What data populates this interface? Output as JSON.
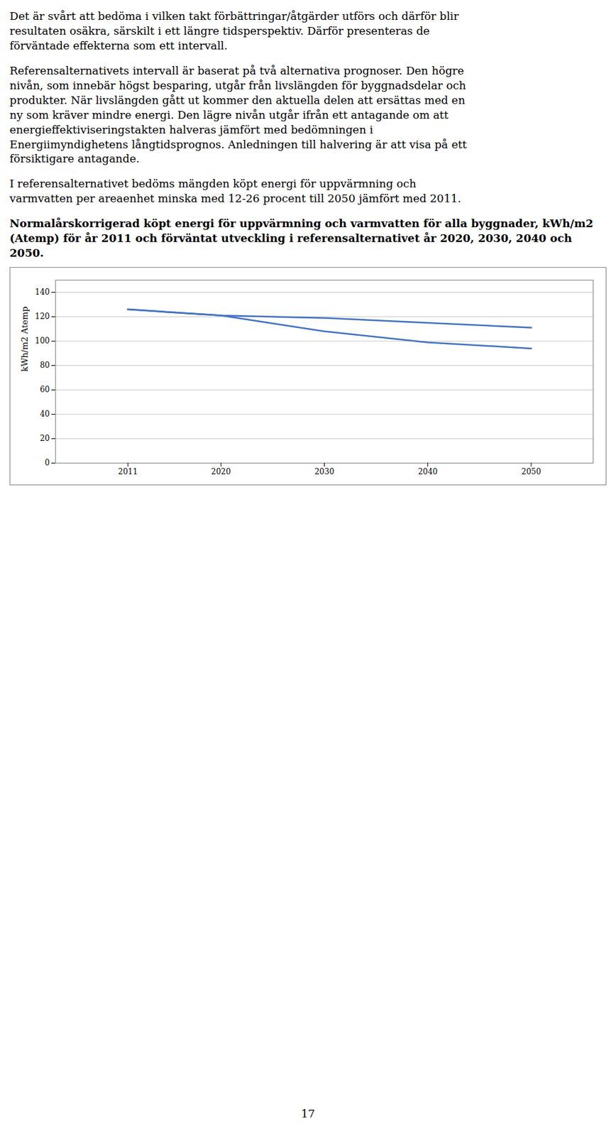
{
  "chart_data": {
    "type": "line",
    "annotations": [
      "Det är svårt att bedöma i vilken takt förbättringar/åtgärder utförs och därför blir\nresultaten osäkra, särskilt i ett längre tidsperspektiv. Därför presenteras de\nförväntade effekterna som ett intervall.",
      "Referensalternativets intervall är baserat på två alternativa prognoser. Den högre\nnivån, som innebär högst besparing, utgår från livslängden för byggnadsdelar och\nprodukter. När livslängden gått ut kommer den aktuella delen att ersättas med en\nny som kräver mindre energi. Den lägre nivån utgår ifrån ett antagande om att\nenergieffektiviseringstakten halveras jämfört med bedömningen i\nEnergiimyndighetens långtidsprognos. Anledningen till halvering är att visa på ett\nförsiktigare antagande.",
      "I referensalternativet bedöms mängden köpt energi för uppvärmning och\nvarmvatten per areaenhet minska med 12-26 procent till 2050 jämfört med 2011."
    ],
    "title": "Normalårskorrigerad köpt energi för uppvärmning och varmvatten för alla byggnader, kWh/m2 (Atemp) för år 2011 och förväntat utveckling i referensalternativet år 2020, 2030, 2040 och 2050.",
    "y_label": "kWh/m2 Atemp",
    "x": [
      2011,
      2020,
      2030,
      2040,
      2050
    ],
    "series": [
      {
        "color": "#4472C4",
        "values": [
          126,
          121,
          119,
          115,
          111
        ]
      },
      {
        "color": "#4472C4",
        "values": [
          126,
          121,
          108,
          99,
          94
        ]
      }
    ],
    "xlim": [
      2004,
      2056
    ],
    "xticks": [
      2011,
      2020,
      2030,
      2040,
      2050
    ],
    "ylim": [
      0,
      150
    ],
    "yticks": [
      0,
      20,
      40,
      60,
      80,
      100,
      120,
      140
    ],
    "grid": true,
    "page_number": "17"
  }
}
